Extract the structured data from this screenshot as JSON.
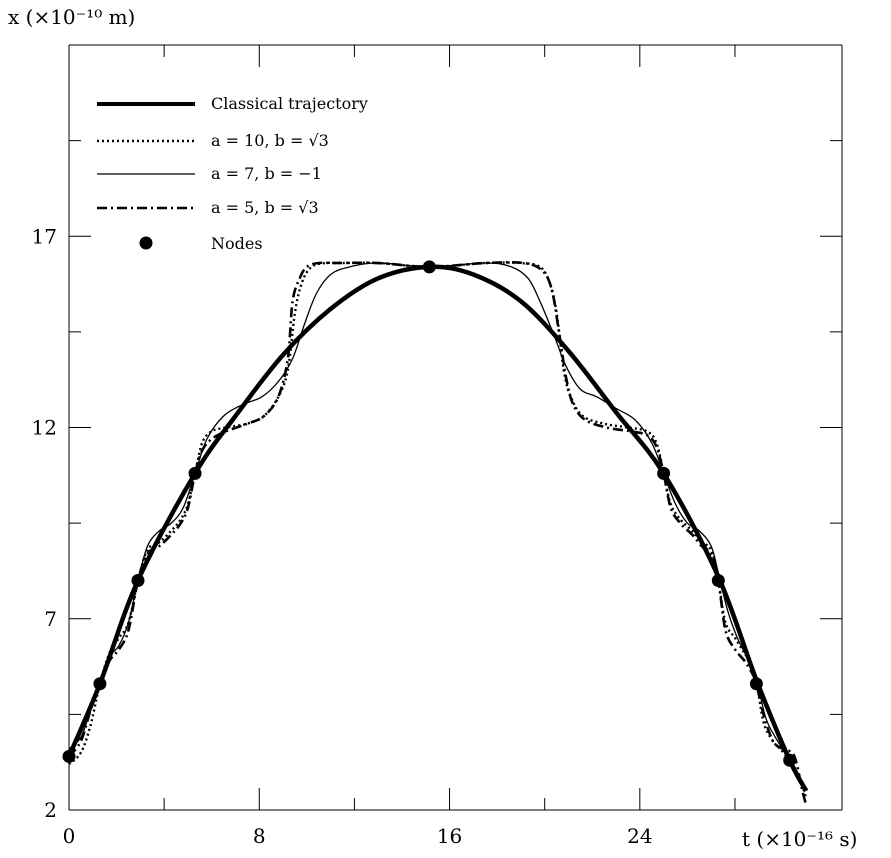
{
  "chart_data": {
    "type": "line",
    "title": "",
    "xlabel": "t (×10⁻¹⁶ s)",
    "ylabel": "x (×10⁻¹⁰ m)",
    "xlim": [
      0,
      32.5
    ],
    "ylim": [
      2,
      22
    ],
    "xticks": [
      {
        "value": 0,
        "label": "0"
      },
      {
        "value": 8,
        "label": "8"
      },
      {
        "value": 16,
        "label": "16"
      },
      {
        "value": 24,
        "label": "24"
      }
    ],
    "yticks": [
      {
        "value": 2,
        "label": "2"
      },
      {
        "value": 7,
        "label": "7"
      },
      {
        "value": 12,
        "label": "12"
      },
      {
        "value": 17,
        "label": "17"
      }
    ],
    "x_minor_ticks": [
      4,
      12,
      20,
      28
    ],
    "y_minor_ticks": [
      4.5,
      9.5,
      14.5,
      19.5
    ],
    "grid": false,
    "legend_position": "top-left",
    "colors": {
      "axis": "#000000",
      "line": "#000000",
      "background": "#ffffff"
    },
    "series": [
      {
        "name": "Classical trajectory",
        "style": "thick-solid",
        "x": [
          0,
          1.3,
          2.9,
          5.3,
          7.0,
          9.0,
          11.0,
          13.0,
          15.15,
          17.0,
          19.0,
          21.0,
          23.0,
          25.0,
          27.3,
          28.9,
          30.3,
          31.0
        ],
        "y": [
          3.4,
          5.3,
          8.0,
          10.8,
          12.3,
          13.9,
          15.1,
          15.9,
          16.2,
          16.0,
          15.3,
          14.0,
          12.4,
          10.8,
          8.1,
          5.4,
          3.3,
          2.5
        ]
      },
      {
        "name": "a = 10, b = √3",
        "style": "dotted",
        "x": [
          0,
          0.5,
          0.9,
          1.3,
          1.7,
          2.1,
          2.5,
          2.9,
          3.3,
          3.8,
          4.3,
          4.7,
          5.0,
          5.3,
          5.6,
          6.0,
          6.6,
          7.5,
          8.2,
          8.8,
          9.2,
          9.5,
          9.8,
          10.2,
          10.8,
          11.5,
          13.0,
          15.15,
          17.5,
          19.0,
          19.8,
          20.2,
          20.5,
          20.8,
          21.1,
          21.6,
          22.5,
          23.5,
          24.3,
          24.7,
          25.0,
          25.3,
          25.7,
          26.2,
          26.6,
          27.0,
          27.3,
          27.6,
          28.0,
          28.4,
          28.7,
          28.9,
          29.2,
          29.6,
          29.9,
          30.3,
          30.6,
          30.8,
          31.0
        ],
        "y": [
          3.2,
          3.5,
          4.2,
          5.3,
          6.1,
          6.5,
          6.9,
          8.0,
          8.8,
          9.0,
          9.3,
          9.6,
          10.0,
          10.8,
          11.6,
          11.9,
          12.0,
          12.1,
          12.3,
          12.8,
          13.5,
          15.0,
          15.8,
          16.2,
          16.3,
          16.3,
          16.3,
          16.2,
          16.3,
          16.3,
          16.2,
          15.8,
          15.0,
          13.5,
          12.8,
          12.3,
          12.1,
          12.0,
          11.9,
          11.6,
          10.8,
          10.0,
          9.6,
          9.3,
          9.0,
          8.8,
          8.0,
          6.9,
          6.5,
          6.1,
          5.8,
          5.4,
          4.3,
          3.8,
          3.6,
          3.3,
          3.0,
          2.7,
          2.3
        ]
      },
      {
        "name": "a = 7, b = −1",
        "style": "thin-solid",
        "x": [
          0,
          0.5,
          0.9,
          1.3,
          1.7,
          2.1,
          2.5,
          2.9,
          3.3,
          3.8,
          4.3,
          4.8,
          5.3,
          5.8,
          6.5,
          7.3,
          8.1,
          8.8,
          9.4,
          9.9,
          10.4,
          11.0,
          11.8,
          13.0,
          15.15,
          17.5,
          18.6,
          19.3,
          19.8,
          20.4,
          20.9,
          21.5,
          22.2,
          23.0,
          23.8,
          24.5,
          25.0,
          25.5,
          26.0,
          26.5,
          27.0,
          27.3,
          27.7,
          28.1,
          28.5,
          28.9,
          29.3,
          29.7,
          30.1,
          30.5,
          30.9
        ],
        "y": [
          3.6,
          3.9,
          4.6,
          5.3,
          6.0,
          6.3,
          6.9,
          8.0,
          8.9,
          9.3,
          9.5,
          9.9,
          10.8,
          11.7,
          12.3,
          12.6,
          12.8,
          13.2,
          13.8,
          14.7,
          15.5,
          16.0,
          16.2,
          16.3,
          16.2,
          16.3,
          16.2,
          15.9,
          15.3,
          14.4,
          13.6,
          13.0,
          12.8,
          12.5,
          12.2,
          11.6,
          10.8,
          10.0,
          9.5,
          9.3,
          8.9,
          8.2,
          7.2,
          6.5,
          6.0,
          5.4,
          4.4,
          3.9,
          3.5,
          3.0,
          2.5
        ]
      },
      {
        "name": "a = 5, b = √3",
        "style": "dash-dot",
        "x": [
          0,
          0.5,
          0.9,
          1.3,
          1.7,
          2.1,
          2.5,
          2.9,
          3.3,
          3.8,
          4.3,
          4.7,
          5.0,
          5.3,
          5.6,
          6.0,
          6.6,
          7.5,
          8.2,
          8.8,
          9.2,
          9.4,
          9.7,
          10.0,
          10.5,
          11.2,
          13.0,
          15.15,
          17.5,
          19.1,
          19.9,
          20.3,
          20.6,
          20.9,
          21.2,
          21.7,
          22.6,
          23.6,
          24.3,
          24.7,
          25.0,
          25.3,
          25.7,
          26.2,
          26.6,
          27.0,
          27.3,
          27.6,
          28.0,
          28.4,
          28.7,
          28.9,
          29.2,
          29.6,
          30.0,
          30.4,
          30.6,
          30.8,
          31.0
        ],
        "y": [
          3.4,
          3.8,
          4.6,
          5.3,
          5.9,
          6.2,
          6.7,
          8.0,
          8.7,
          8.9,
          9.2,
          9.5,
          9.9,
          10.8,
          11.4,
          11.7,
          11.9,
          12.1,
          12.3,
          12.8,
          13.8,
          15.3,
          15.9,
          16.2,
          16.3,
          16.3,
          16.3,
          16.2,
          16.3,
          16.3,
          16.1,
          15.6,
          14.5,
          13.3,
          12.6,
          12.2,
          12.0,
          11.9,
          11.8,
          11.5,
          10.8,
          9.9,
          9.5,
          9.2,
          8.9,
          8.7,
          8.0,
          6.7,
          6.2,
          5.9,
          5.6,
          5.3,
          4.5,
          3.8,
          3.6,
          3.5,
          3.2,
          2.6,
          2.1
        ]
      }
    ],
    "nodes": {
      "name": "Nodes",
      "x": [
        0,
        1.3,
        2.9,
        5.3,
        15.15,
        25.0,
        27.3,
        28.9,
        30.3
      ],
      "y": [
        3.4,
        5.3,
        8.0,
        10.8,
        16.2,
        10.8,
        8.0,
        5.3,
        3.3
      ]
    }
  }
}
